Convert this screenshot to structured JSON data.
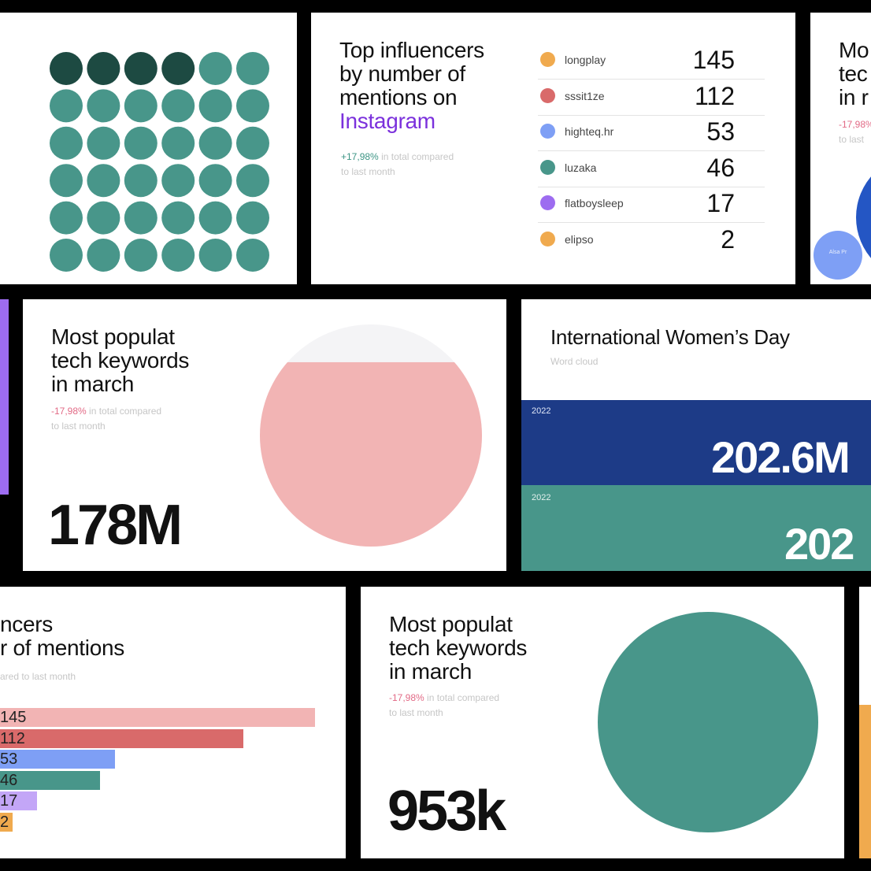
{
  "colors": {
    "teal": "#48968a",
    "dark_teal": "#1d4a42",
    "pink": "#f2b4b4",
    "red": "#d96a6a",
    "blue": "#7e9ff5",
    "purple": "#9d6cf0",
    "light_purple": "#c3a6f7",
    "orange": "#f0aa4e",
    "navy": "#1d3b87",
    "instagram_purple": "#7b31dc",
    "pos_green": "#3d9585",
    "neg_pink": "#e26a86"
  },
  "dot_grid": {
    "rows": 6,
    "cols": 6,
    "highlighted": 4
  },
  "influencers": {
    "title_lines": [
      "Top influencers",
      "by number of",
      "mentions on"
    ],
    "platform": "Instagram",
    "change": "+17,98%",
    "change_rest": "in total compared",
    "change_line2": "to last month",
    "items": [
      {
        "name": "longplay",
        "value": "145",
        "color": "#f0aa4e"
      },
      {
        "name": "sssit1ze",
        "value": "112",
        "color": "#d96a6a"
      },
      {
        "name": "highteq.hr",
        "value": "53",
        "color": "#7e9ff5"
      },
      {
        "name": "luzaka",
        "value": "46",
        "color": "#48968a"
      },
      {
        "name": "flatboysleep",
        "value": "17",
        "color": "#9d6cf0"
      },
      {
        "name": "elipso",
        "value": "2",
        "color": "#f0aa4e"
      }
    ]
  },
  "partial_right_top": {
    "lines": [
      "Mo",
      "tec",
      "in r"
    ],
    "change": "-17,98%",
    "change_line2": "to last",
    "bubble_label": "Alsa Pr"
  },
  "keywords_pink": {
    "title_lines": [
      "Most populat",
      "tech keywords",
      "in march"
    ],
    "change": "-17,98%",
    "change_rest": "in total compared",
    "change_line2": "to last month",
    "big_value": "178M",
    "fill_fraction": 0.83
  },
  "womens_day": {
    "title": "International Women’s Day",
    "subtitle": "Word cloud",
    "bands": [
      {
        "year": "2022",
        "value": "202.6M"
      },
      {
        "year": "2022",
        "value": "202"
      }
    ]
  },
  "partial_influencers": {
    "title_lines": [
      "ncers",
      "r of mentions"
    ],
    "subtitle": "ared to last month"
  },
  "chart_data": {
    "type": "bar",
    "orientation": "horizontal",
    "categories": [
      "longplay",
      "sssit1ze",
      "highteq.hr",
      "luzaka",
      "flatboysleep",
      "elipso"
    ],
    "values": [
      145,
      112,
      53,
      46,
      17,
      2
    ],
    "value_labels": [
      "145",
      "112",
      "53",
      "46",
      "17",
      "2"
    ],
    "colors": [
      "#f2b4b4",
      "#d96a6a",
      "#7e9ff5",
      "#48968a",
      "#c3a6f7",
      "#f0aa4e"
    ],
    "grid": false
  },
  "keywords_teal": {
    "title_lines": [
      "Most populat",
      "tech keywords",
      "in march"
    ],
    "change": "-17,98%",
    "change_rest": "in total compared",
    "change_line2": "to last month",
    "big_value": "953k"
  }
}
